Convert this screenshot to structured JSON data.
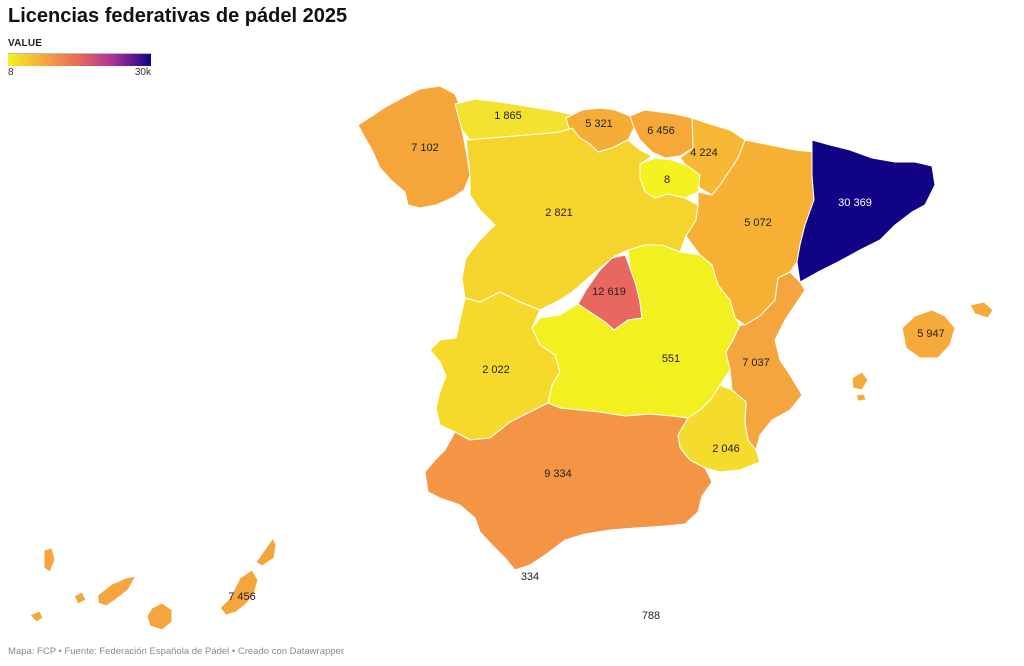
{
  "title": "Licencias federativas de pádel 2025",
  "legend": {
    "title": "VALUE",
    "min_label": "8",
    "max_label": "30k",
    "min_value": 8,
    "max_value": 30369,
    "colors": [
      "#f3f21f",
      "#f6a83b",
      "#e8675f",
      "#a4309b",
      "#100385"
    ]
  },
  "regions": [
    {
      "id": "galicia",
      "name": "Galicia",
      "value": 7102,
      "label": "7 102",
      "color": "#f5a63b"
    },
    {
      "id": "asturias",
      "name": "Asturias",
      "value": 1865,
      "label": "1 865",
      "color": "#f4e230"
    },
    {
      "id": "cantabria",
      "name": "Cantabria",
      "value": 5321,
      "label": "5 321",
      "color": "#f6ad38"
    },
    {
      "id": "pais-vasco",
      "name": "País Vasco",
      "value": 6456,
      "label": "6 456",
      "color": "#f6a83b"
    },
    {
      "id": "navarra",
      "name": "Navarra",
      "value": 4224,
      "label": "4 224",
      "color": "#f6b834"
    },
    {
      "id": "la-rioja",
      "name": "La Rioja",
      "value": 8,
      "label": "8",
      "color": "#f4f221"
    },
    {
      "id": "castilla-y-leon",
      "name": "Castilla y León",
      "value": 2821,
      "label": "2 821",
      "color": "#f5d42e"
    },
    {
      "id": "aragon",
      "name": "Aragón",
      "value": 5072,
      "label": "5 072",
      "color": "#f6b134"
    },
    {
      "id": "cataluna",
      "name": "Cataluña",
      "value": 30369,
      "label": "30 369",
      "color": "#100385"
    },
    {
      "id": "madrid",
      "name": "Madrid",
      "value": 12619,
      "label": "12 619",
      "color": "#e8675f"
    },
    {
      "id": "castilla-la-mancha",
      "name": "Castilla-La Mancha",
      "value": 551,
      "label": "551",
      "color": "#f3f022"
    },
    {
      "id": "extremadura",
      "name": "Extremadura",
      "value": 2022,
      "label": "2 022",
      "color": "#f5da2c"
    },
    {
      "id": "comunidad-valenciana",
      "name": "Comunidad Valenciana",
      "value": 7037,
      "label": "7 037",
      "color": "#f5a53d"
    },
    {
      "id": "murcia",
      "name": "Murcia",
      "value": 2046,
      "label": "2 046",
      "color": "#f5dc2c"
    },
    {
      "id": "andalucia",
      "name": "Andalucía",
      "value": 9334,
      "label": "9 334",
      "color": "#f39545"
    },
    {
      "id": "baleares",
      "name": "Islas Baleares",
      "value": 5947,
      "label": "5 947",
      "color": "#f6aa3a"
    },
    {
      "id": "canarias",
      "name": "Canarias",
      "value": 7456,
      "label": "7 456",
      "color": "#f5a53d"
    },
    {
      "id": "ceuta",
      "name": "Ceuta",
      "value": 334,
      "label": "334",
      "color": "#f3f022"
    },
    {
      "id": "melilla",
      "name": "Melilla",
      "value": 788,
      "label": "788",
      "color": "#f3ee24"
    }
  ],
  "footer": "Mapa: FCP • Fuente: Federación Española de Pádel • Creado con Datawrapper"
}
